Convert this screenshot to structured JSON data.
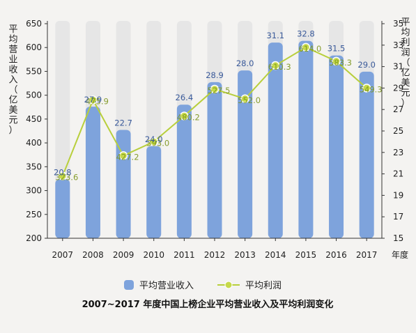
{
  "chart_data": {
    "type": "bar",
    "title": "2007~2017 年度中国上榜企业平均营业收入及平均利润变化",
    "categories": [
      "2007",
      "2008",
      "2009",
      "2010",
      "2011",
      "2012",
      "2013",
      "2014",
      "2015",
      "2016",
      "2017"
    ],
    "series": [
      {
        "name": "平均营业收入",
        "type": "bar",
        "axis": "left",
        "values": [
          323.6,
          475.9,
          427.2,
          393.0,
          480.2,
          527.5,
          552.0,
          610.3,
          614.0,
          583.3,
          549.3
        ],
        "labels": [
          "323.6",
          "475.9",
          "427.2",
          "393.0",
          "480.2",
          "527.5",
          "552.0",
          "610.3",
          "614.0",
          "583.3",
          "549.3"
        ]
      },
      {
        "name": "平均利润",
        "type": "line",
        "axis": "right",
        "values": [
          20.8,
          27.9,
          22.7,
          24.0,
          26.4,
          28.9,
          28.0,
          31.1,
          32.8,
          31.5,
          29.0
        ],
        "labels": [
          "20.8",
          "27.9",
          "22.7",
          "24.0",
          "26.4",
          "28.9",
          "28.0",
          "31.1",
          "32.8",
          "31.5",
          "29.0"
        ]
      }
    ],
    "left_axis": {
      "title": "平均营业收入（亿美元）",
      "ylim": [
        200,
        650
      ],
      "ticks": [
        "200",
        "250",
        "300",
        "350",
        "400",
        "450",
        "500",
        "550",
        "600",
        "650"
      ]
    },
    "right_axis": {
      "title": "平均利润（亿美元）",
      "ylim": [
        15,
        35
      ],
      "ticks": [
        "15",
        "17",
        "19",
        "21",
        "23",
        "25",
        "27",
        "29",
        "31",
        "33",
        "35"
      ]
    },
    "xlabel": "年度",
    "grid": false,
    "legend_position": "bottom",
    "colors": {
      "bar": "#7ea3dc",
      "bar_bg": "#e6e6e6",
      "line": "#b8cf3c",
      "marker_fill": "#c6d94a",
      "bar_label": "#3a5a9a",
      "line_label": "#7a9418"
    }
  }
}
